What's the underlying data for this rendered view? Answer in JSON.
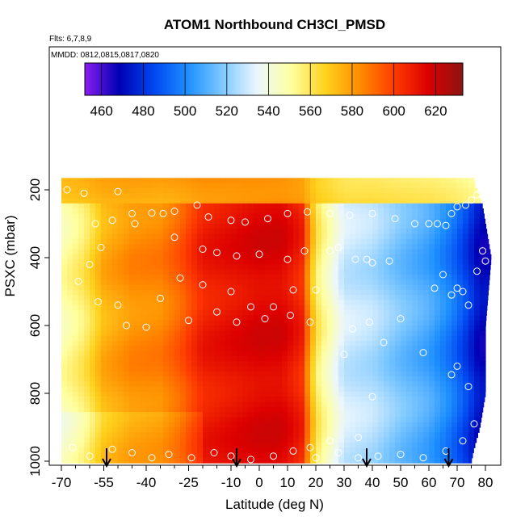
{
  "chart_data": {
    "type": "heatmap",
    "title": "ATOM1 Northbound CH3Cl_PMSD",
    "flights_label": "Flts: 6,7,8,9",
    "dates_label": "MMDD: 0812,0815,0817,0820",
    "xlabel": "Latitude (deg N)",
    "ylabel": "PSXC (mbar)",
    "xlim": [
      -70,
      82
    ],
    "ylim": [
      1010,
      100
    ],
    "x_ticks": [
      -70,
      -55,
      -40,
      -25,
      -10,
      0,
      10,
      20,
      30,
      40,
      50,
      60,
      70,
      80
    ],
    "x_tick_labels": [
      "-70",
      "-55",
      "-40",
      "-25",
      "-10",
      "0",
      "10",
      "20",
      "30",
      "40",
      "50",
      "60",
      "70",
      "80"
    ],
    "y_ticks": [
      200,
      400,
      600,
      800,
      1000
    ],
    "y_tick_labels": [
      "200",
      "400",
      "600",
      "800",
      "1000"
    ],
    "colorbar": {
      "min": 452,
      "max": 633,
      "ticks": [
        460,
        480,
        500,
        520,
        540,
        560,
        580,
        600,
        620
      ],
      "tick_labels": [
        "460",
        "480",
        "500",
        "520",
        "540",
        "560",
        "580",
        "600",
        "620"
      ],
      "colors": [
        "#8a1ef0",
        "#0000b4",
        "#0046f0",
        "#1e90ff",
        "#7ec8ff",
        "#eaf6ff",
        "#ffffa0",
        "#ffd21e",
        "#ff8c00",
        "#ff3c00",
        "#dc0000",
        "#8c1414"
      ]
    },
    "lat_profile": [
      [
        -70,
        548
      ],
      [
        -62,
        558
      ],
      [
        -55,
        575
      ],
      [
        -45,
        583
      ],
      [
        -35,
        585
      ],
      [
        -28,
        593
      ],
      [
        -20,
        608
      ],
      [
        -10,
        612
      ],
      [
        0,
        616
      ],
      [
        8,
        616
      ],
      [
        15,
        606
      ],
      [
        20,
        560
      ],
      [
        30,
        530
      ],
      [
        40,
        526
      ],
      [
        50,
        516
      ],
      [
        60,
        508
      ],
      [
        68,
        496
      ],
      [
        74,
        482
      ],
      [
        78,
        470
      ]
    ],
    "lat_coverage_max": [
      [
        180,
        76
      ],
      [
        250,
        79
      ],
      [
        300,
        80
      ],
      [
        400,
        82
      ],
      [
        500,
        81
      ],
      [
        600,
        80
      ],
      [
        700,
        80
      ],
      [
        800,
        80
      ],
      [
        900,
        78
      ],
      [
        960,
        76
      ],
      [
        1000,
        75
      ]
    ],
    "arrows_lat": [
      -54,
      -8,
      38,
      67
    ],
    "sample_points": [
      [
        -68,
        200
      ],
      [
        -62,
        210
      ],
      [
        -50,
        205
      ],
      [
        -45,
        270
      ],
      [
        -38,
        268
      ],
      [
        -34,
        270
      ],
      [
        -30,
        263
      ],
      [
        -22,
        245
      ],
      [
        -18,
        280
      ],
      [
        -10,
        290
      ],
      [
        -5,
        295
      ],
      [
        3,
        285
      ],
      [
        10,
        270
      ],
      [
        17,
        265
      ],
      [
        25,
        270
      ],
      [
        32,
        275
      ],
      [
        40,
        270
      ],
      [
        48,
        285
      ],
      [
        55,
        300
      ],
      [
        60,
        300
      ],
      [
        63,
        300
      ],
      [
        66,
        305
      ],
      [
        68,
        270
      ],
      [
        70,
        250
      ],
      [
        73,
        245
      ],
      [
        75,
        230
      ],
      [
        77,
        215
      ],
      [
        -58,
        300
      ],
      [
        -52,
        290
      ],
      [
        -44,
        300
      ],
      [
        -60,
        420
      ],
      [
        -56,
        370
      ],
      [
        -30,
        340
      ],
      [
        -20,
        375
      ],
      [
        -15,
        385
      ],
      [
        -8,
        395
      ],
      [
        0,
        390
      ],
      [
        10,
        405
      ],
      [
        16,
        380
      ],
      [
        25,
        380
      ],
      [
        28,
        370
      ],
      [
        34,
        405
      ],
      [
        38,
        405
      ],
      [
        40,
        415
      ],
      [
        46,
        410
      ],
      [
        -64,
        470
      ],
      [
        -57,
        530
      ],
      [
        -50,
        540
      ],
      [
        -35,
        520
      ],
      [
        -28,
        460
      ],
      [
        -20,
        480
      ],
      [
        -10,
        500
      ],
      [
        -3,
        545
      ],
      [
        5,
        545
      ],
      [
        12,
        495
      ],
      [
        20,
        495
      ],
      [
        -47,
        600
      ],
      [
        -40,
        605
      ],
      [
        -25,
        585
      ],
      [
        -15,
        560
      ],
      [
        -8,
        590
      ],
      [
        2,
        580
      ],
      [
        11,
        570
      ],
      [
        18,
        590
      ],
      [
        33,
        610
      ],
      [
        39,
        590
      ],
      [
        44,
        650
      ],
      [
        50,
        580
      ],
      [
        58,
        680
      ],
      [
        62,
        490
      ],
      [
        65,
        450
      ],
      [
        68,
        510
      ],
      [
        70,
        490
      ],
      [
        72,
        500
      ],
      [
        74,
        540
      ],
      [
        77,
        440
      ],
      [
        79,
        380
      ],
      [
        80,
        410
      ],
      [
        -66,
        960
      ],
      [
        -60,
        985
      ],
      [
        -52,
        965
      ],
      [
        -45,
        975
      ],
      [
        -38,
        990
      ],
      [
        -32,
        980
      ],
      [
        -24,
        990
      ],
      [
        -16,
        975
      ],
      [
        -10,
        985
      ],
      [
        -3,
        995
      ],
      [
        5,
        985
      ],
      [
        12,
        970
      ],
      [
        20,
        990
      ],
      [
        28,
        975
      ],
      [
        35,
        990
      ],
      [
        42,
        985
      ],
      [
        50,
        980
      ],
      [
        58,
        990
      ],
      [
        66,
        970
      ],
      [
        72,
        940
      ],
      [
        76,
        890
      ],
      [
        68,
        745
      ],
      [
        70,
        720
      ],
      [
        74,
        780
      ],
      [
        30,
        685
      ],
      [
        40,
        810
      ],
      [
        35,
        930
      ],
      [
        25,
        940
      ],
      [
        18,
        960
      ]
    ]
  }
}
